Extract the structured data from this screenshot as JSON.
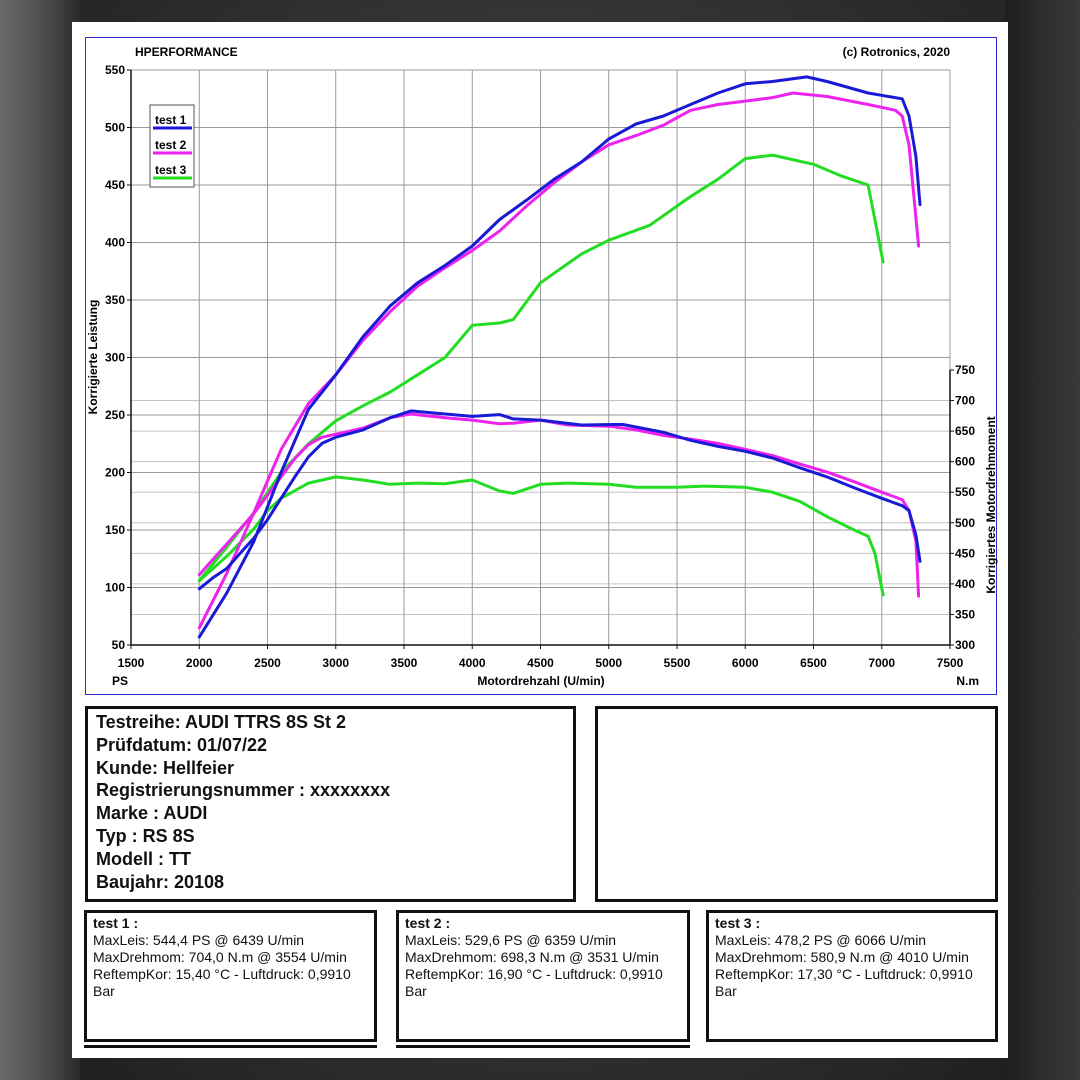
{
  "header": {
    "left": "HPERFORMANCE",
    "right": "(c) Rotronics, 2020"
  },
  "chart_data": {
    "type": "line",
    "title": "",
    "xlabel": "Motordrehzahl (U/min)",
    "xunit": "PS",
    "ylabel": "Korrigierte Leistung",
    "y2label": "Korrigiertes Motordrehmoment",
    "y2unit": "N.m",
    "xlim": [
      1500,
      7500
    ],
    "ylim": [
      50,
      550
    ],
    "y2lim": [
      300,
      750
    ],
    "xticks": [
      1500,
      2000,
      2500,
      3000,
      3500,
      4000,
      4500,
      5000,
      5500,
      6000,
      6500,
      7000,
      7500
    ],
    "yticks": [
      50,
      100,
      150,
      200,
      250,
      300,
      350,
      400,
      450,
      500,
      550
    ],
    "y2ticks": [
      300,
      350,
      400,
      450,
      500,
      550,
      600,
      650,
      700,
      750
    ],
    "grid": true,
    "legend": "top-left",
    "series": [
      {
        "name": "test 1",
        "color": "#1a1ad6",
        "power": [
          [
            2000,
            57
          ],
          [
            2200,
            95
          ],
          [
            2400,
            140
          ],
          [
            2600,
            200
          ],
          [
            2800,
            255
          ],
          [
            3000,
            285
          ],
          [
            3200,
            318
          ],
          [
            3400,
            345
          ],
          [
            3600,
            365
          ],
          [
            3800,
            380
          ],
          [
            4000,
            397
          ],
          [
            4200,
            420
          ],
          [
            4400,
            437
          ],
          [
            4600,
            455
          ],
          [
            4800,
            470
          ],
          [
            5000,
            490
          ],
          [
            5200,
            503
          ],
          [
            5400,
            510
          ],
          [
            5600,
            520
          ],
          [
            5800,
            530
          ],
          [
            6000,
            538
          ],
          [
            6200,
            540
          ],
          [
            6450,
            544
          ],
          [
            6600,
            540
          ],
          [
            6900,
            530
          ],
          [
            7150,
            525
          ],
          [
            7200,
            510
          ],
          [
            7250,
            475
          ],
          [
            7280,
            433
          ]
        ],
        "torque": [
          [
            2000,
            392
          ],
          [
            2100,
            410
          ],
          [
            2200,
            425
          ],
          [
            2300,
            450
          ],
          [
            2400,
            475
          ],
          [
            2500,
            505
          ],
          [
            2600,
            540
          ],
          [
            2700,
            575
          ],
          [
            2800,
            608
          ],
          [
            2900,
            630
          ],
          [
            3000,
            640
          ],
          [
            3200,
            652
          ],
          [
            3400,
            672
          ],
          [
            3550,
            683
          ],
          [
            3700,
            680
          ],
          [
            4000,
            674
          ],
          [
            4200,
            677
          ],
          [
            4300,
            670
          ],
          [
            4500,
            668
          ],
          [
            4800,
            660
          ],
          [
            5100,
            661
          ],
          [
            5400,
            648
          ],
          [
            5600,
            635
          ],
          [
            5800,
            625
          ],
          [
            6000,
            617
          ],
          [
            6200,
            606
          ],
          [
            6400,
            590
          ],
          [
            6600,
            575
          ],
          [
            6800,
            557
          ],
          [
            7000,
            540
          ],
          [
            7150,
            528
          ],
          [
            7200,
            520
          ],
          [
            7250,
            480
          ],
          [
            7280,
            437
          ]
        ]
      },
      {
        "name": "test 2",
        "color": "#ee22ee",
        "power": [
          [
            2000,
            65
          ],
          [
            2200,
            112
          ],
          [
            2400,
            165
          ],
          [
            2600,
            220
          ],
          [
            2800,
            260
          ],
          [
            3000,
            285
          ],
          [
            3200,
            315
          ],
          [
            3400,
            340
          ],
          [
            3600,
            362
          ],
          [
            3800,
            378
          ],
          [
            4000,
            393
          ],
          [
            4200,
            410
          ],
          [
            4400,
            432
          ],
          [
            4600,
            452
          ],
          [
            4800,
            470
          ],
          [
            5000,
            485
          ],
          [
            5200,
            493
          ],
          [
            5400,
            502
          ],
          [
            5600,
            515
          ],
          [
            5800,
            520
          ],
          [
            6000,
            523
          ],
          [
            6200,
            526
          ],
          [
            6350,
            530
          ],
          [
            6600,
            527
          ],
          [
            6900,
            520
          ],
          [
            7100,
            515
          ],
          [
            7150,
            510
          ],
          [
            7200,
            485
          ],
          [
            7270,
            397
          ]
        ],
        "torque": [
          [
            2000,
            415
          ],
          [
            2100,
            440
          ],
          [
            2200,
            465
          ],
          [
            2300,
            490
          ],
          [
            2400,
            515
          ],
          [
            2500,
            545
          ],
          [
            2600,
            575
          ],
          [
            2700,
            605
          ],
          [
            2800,
            628
          ],
          [
            2900,
            640
          ],
          [
            3000,
            645
          ],
          [
            3200,
            655
          ],
          [
            3400,
            672
          ],
          [
            3550,
            678
          ],
          [
            3800,
            672
          ],
          [
            4000,
            668
          ],
          [
            4200,
            662
          ],
          [
            4300,
            663
          ],
          [
            4500,
            668
          ],
          [
            4700,
            660
          ],
          [
            5000,
            658
          ],
          [
            5200,
            652
          ],
          [
            5400,
            643
          ],
          [
            5600,
            637
          ],
          [
            5800,
            630
          ],
          [
            6000,
            620
          ],
          [
            6200,
            610
          ],
          [
            6400,
            596
          ],
          [
            6600,
            583
          ],
          [
            6800,
            567
          ],
          [
            7000,
            550
          ],
          [
            7150,
            538
          ],
          [
            7200,
            520
          ],
          [
            7250,
            470
          ],
          [
            7270,
            380
          ]
        ]
      },
      {
        "name": "test 3",
        "color": "#22dd22",
        "power": [
          [
            2000,
            106
          ],
          [
            2200,
            135
          ],
          [
            2400,
            165
          ],
          [
            2600,
            200
          ],
          [
            2800,
            225
          ],
          [
            3000,
            245
          ],
          [
            3200,
            258
          ],
          [
            3400,
            270
          ],
          [
            3600,
            285
          ],
          [
            3800,
            300
          ],
          [
            4000,
            328
          ],
          [
            4200,
            330
          ],
          [
            4300,
            333
          ],
          [
            4500,
            365
          ],
          [
            4800,
            390
          ],
          [
            5000,
            402
          ],
          [
            5300,
            415
          ],
          [
            5600,
            440
          ],
          [
            5800,
            455
          ],
          [
            6000,
            473
          ],
          [
            6200,
            476
          ],
          [
            6500,
            468
          ],
          [
            6700,
            458
          ],
          [
            6900,
            450
          ],
          [
            6950,
            420
          ],
          [
            7010,
            383
          ]
        ],
        "torque": [
          [
            2000,
            405
          ],
          [
            2200,
            445
          ],
          [
            2400,
            490
          ],
          [
            2500,
            520
          ],
          [
            2600,
            540
          ],
          [
            2800,
            565
          ],
          [
            3000,
            575
          ],
          [
            3200,
            570
          ],
          [
            3400,
            563
          ],
          [
            3600,
            565
          ],
          [
            3800,
            564
          ],
          [
            4000,
            570
          ],
          [
            4200,
            552
          ],
          [
            4300,
            548
          ],
          [
            4500,
            563
          ],
          [
            4700,
            565
          ],
          [
            5000,
            563
          ],
          [
            5200,
            558
          ],
          [
            5500,
            558
          ],
          [
            5700,
            560
          ],
          [
            6000,
            558
          ],
          [
            6200,
            550
          ],
          [
            6400,
            535
          ],
          [
            6600,
            510
          ],
          [
            6800,
            488
          ],
          [
            6900,
            478
          ],
          [
            6950,
            450
          ],
          [
            7010,
            382
          ]
        ]
      }
    ]
  },
  "info": {
    "testreihe": "Testreihe: AUDI TTRS 8S St 2",
    "pruefdatum": "Prüfdatum: 01/07/22",
    "kunde": "Kunde: Hellfeier",
    "registrierung": "Registrierungsnummer  : xxxxxxxx",
    "marke": "Marke  : AUDI",
    "typ": "Typ  : RS 8S",
    "modell": "Modell  : TT",
    "baujahr": "Baujahr: 20108"
  },
  "tests": [
    {
      "title": "test 1 :",
      "leis": "MaxLeis: 544,4 PS @ 6439 U/min",
      "drehmom": "MaxDrehmom: 704,0 N.m @ 3554 U/min",
      "reftemp": "ReftempKor: 15,40 °C - Luftdruck: 0,9910 Bar"
    },
    {
      "title": "test 2 :",
      "leis": "MaxLeis: 529,6 PS @ 6359 U/min",
      "drehmom": "MaxDrehmom: 698,3 N.m @ 3531 U/min",
      "reftemp": "ReftempKor: 16,90 °C - Luftdruck: 0,9910 Bar"
    },
    {
      "title": "test 3 :",
      "leis": "MaxLeis: 478,2 PS @ 6066 U/min",
      "drehmom": "MaxDrehmom: 580,9 N.m @ 4010 U/min",
      "reftemp": "ReftempKor: 17,30 °C - Luftdruck: 0,9910 Bar"
    }
  ]
}
